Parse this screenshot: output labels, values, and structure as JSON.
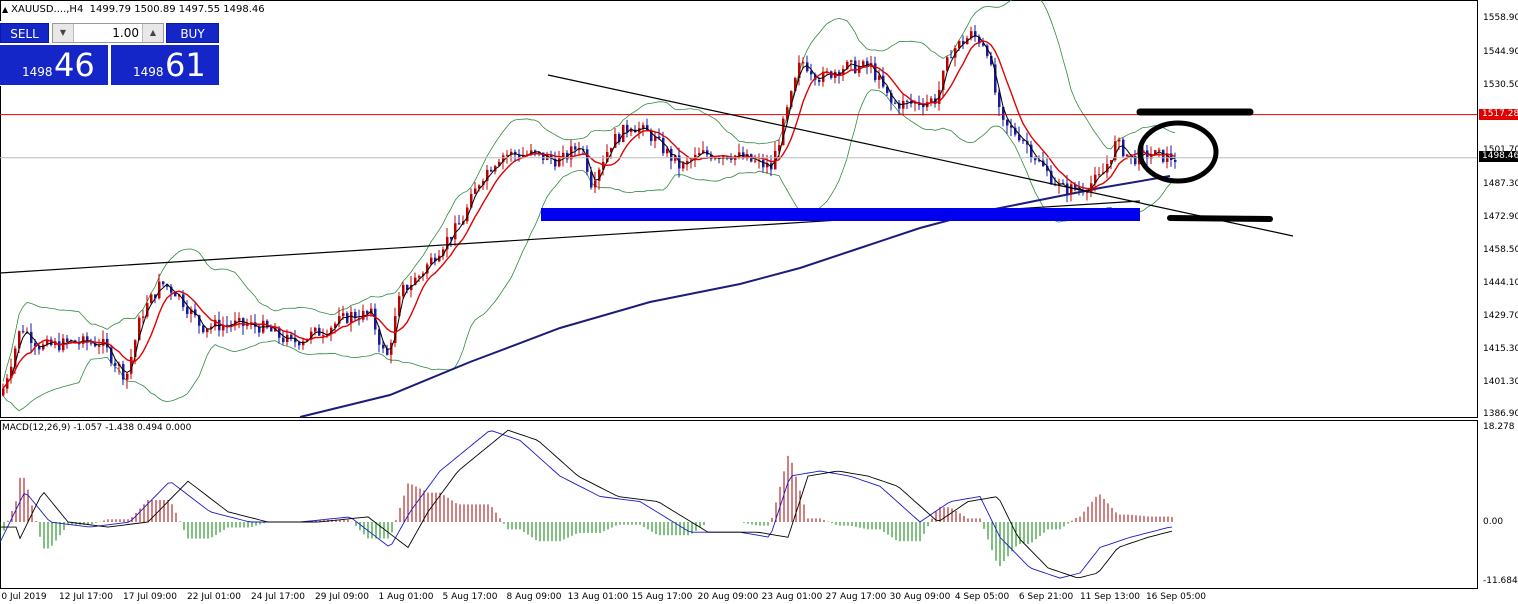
{
  "header": {
    "symbol": "XAUUSD....,H4",
    "ohlc": "1499.79 1500.89 1497.55 1498.46"
  },
  "trade_panel": {
    "sell_label": "SELL",
    "buy_label": "BUY",
    "lot_value": "1.00",
    "bid_small": "1498",
    "bid_big": "46",
    "ask_small": "1498",
    "ask_big": "61"
  },
  "price_axis": {
    "labels": [
      "1558.90",
      "1544.90",
      "1530.50",
      "1501.70",
      "1487.30",
      "1472.90",
      "1458.50",
      "1444.10",
      "1429.70",
      "1415.30",
      "1401.30",
      "1386.90"
    ],
    "resistance_tag": "1517.28",
    "current_tag": "1498.46"
  },
  "macd": {
    "label": "MACD(12,26,9) -1.057 -1.438 0.494 0.000",
    "axis_labels": [
      "18.278",
      "0.00",
      "-11.684"
    ]
  },
  "time_axis": {
    "labels": [
      "0 Jul 2019",
      "12 Jul 17:00",
      "17 Jul 09:00",
      "22 Jul 01:00",
      "24 Jul 17:00",
      "29 Jul 09:00",
      "1 Aug 01:00",
      "5 Aug 17:00",
      "8 Aug 09:00",
      "13 Aug 01:00",
      "15 Aug 17:00",
      "20 Aug 09:00",
      "23 Aug 01:00",
      "27 Aug 17:00",
      "30 Aug 09:00",
      "4 Sep 05:00",
      "6 Sep 21:00",
      "11 Sep 13:00",
      "16 Sep 05:00"
    ]
  },
  "colors": {
    "bull": "#c00000",
    "bear": "#1a1aa0",
    "ma_fast": "#000000",
    "ma_slow": "#e00000",
    "bands": "#2e8b3e",
    "ma_long": "#1c1c7a",
    "zone": "#0000ee"
  },
  "icons": {
    "collapse": "triangle-up-icon",
    "spinner_down": "spin-down-icon",
    "spinner_up": "spin-up-icon"
  }
}
